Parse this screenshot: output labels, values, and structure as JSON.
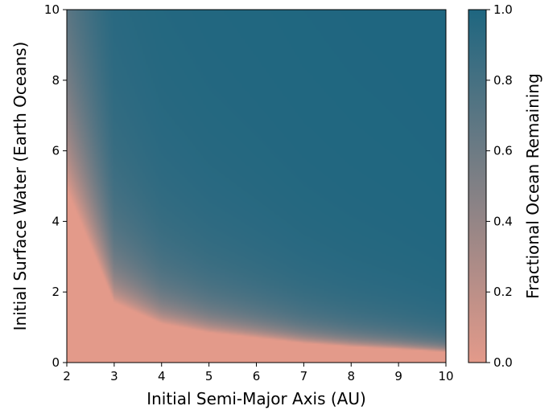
{
  "chart_data": {
    "type": "heatmap",
    "title": "",
    "xlabel": "Initial Semi-Major Axis (AU)",
    "ylabel": "Initial Surface Water (Earth Oceans)",
    "xlim": [
      2,
      10
    ],
    "ylim": [
      0,
      10
    ],
    "x_ticks": [
      2,
      3,
      4,
      5,
      6,
      7,
      8,
      9,
      10
    ],
    "y_ticks": [
      0,
      2,
      4,
      6,
      8,
      10
    ],
    "colorbar": {
      "label": "Fractional Ocean Remaining",
      "range": [
        0,
        1
      ],
      "ticks": [
        "0.0",
        "0.2",
        "0.4",
        "0.6",
        "0.8",
        "1.0"
      ],
      "low_color": "#e39a8a",
      "high_color": "#1e6680"
    },
    "boundary_curve": {
      "description_points_x": [
        2,
        3,
        4,
        5,
        6,
        7,
        8,
        9,
        10
      ],
      "water_threshold_y": [
        4.9,
        1.7,
        1.1,
        0.85,
        0.7,
        0.55,
        0.45,
        0.38,
        0.3
      ]
    }
  }
}
